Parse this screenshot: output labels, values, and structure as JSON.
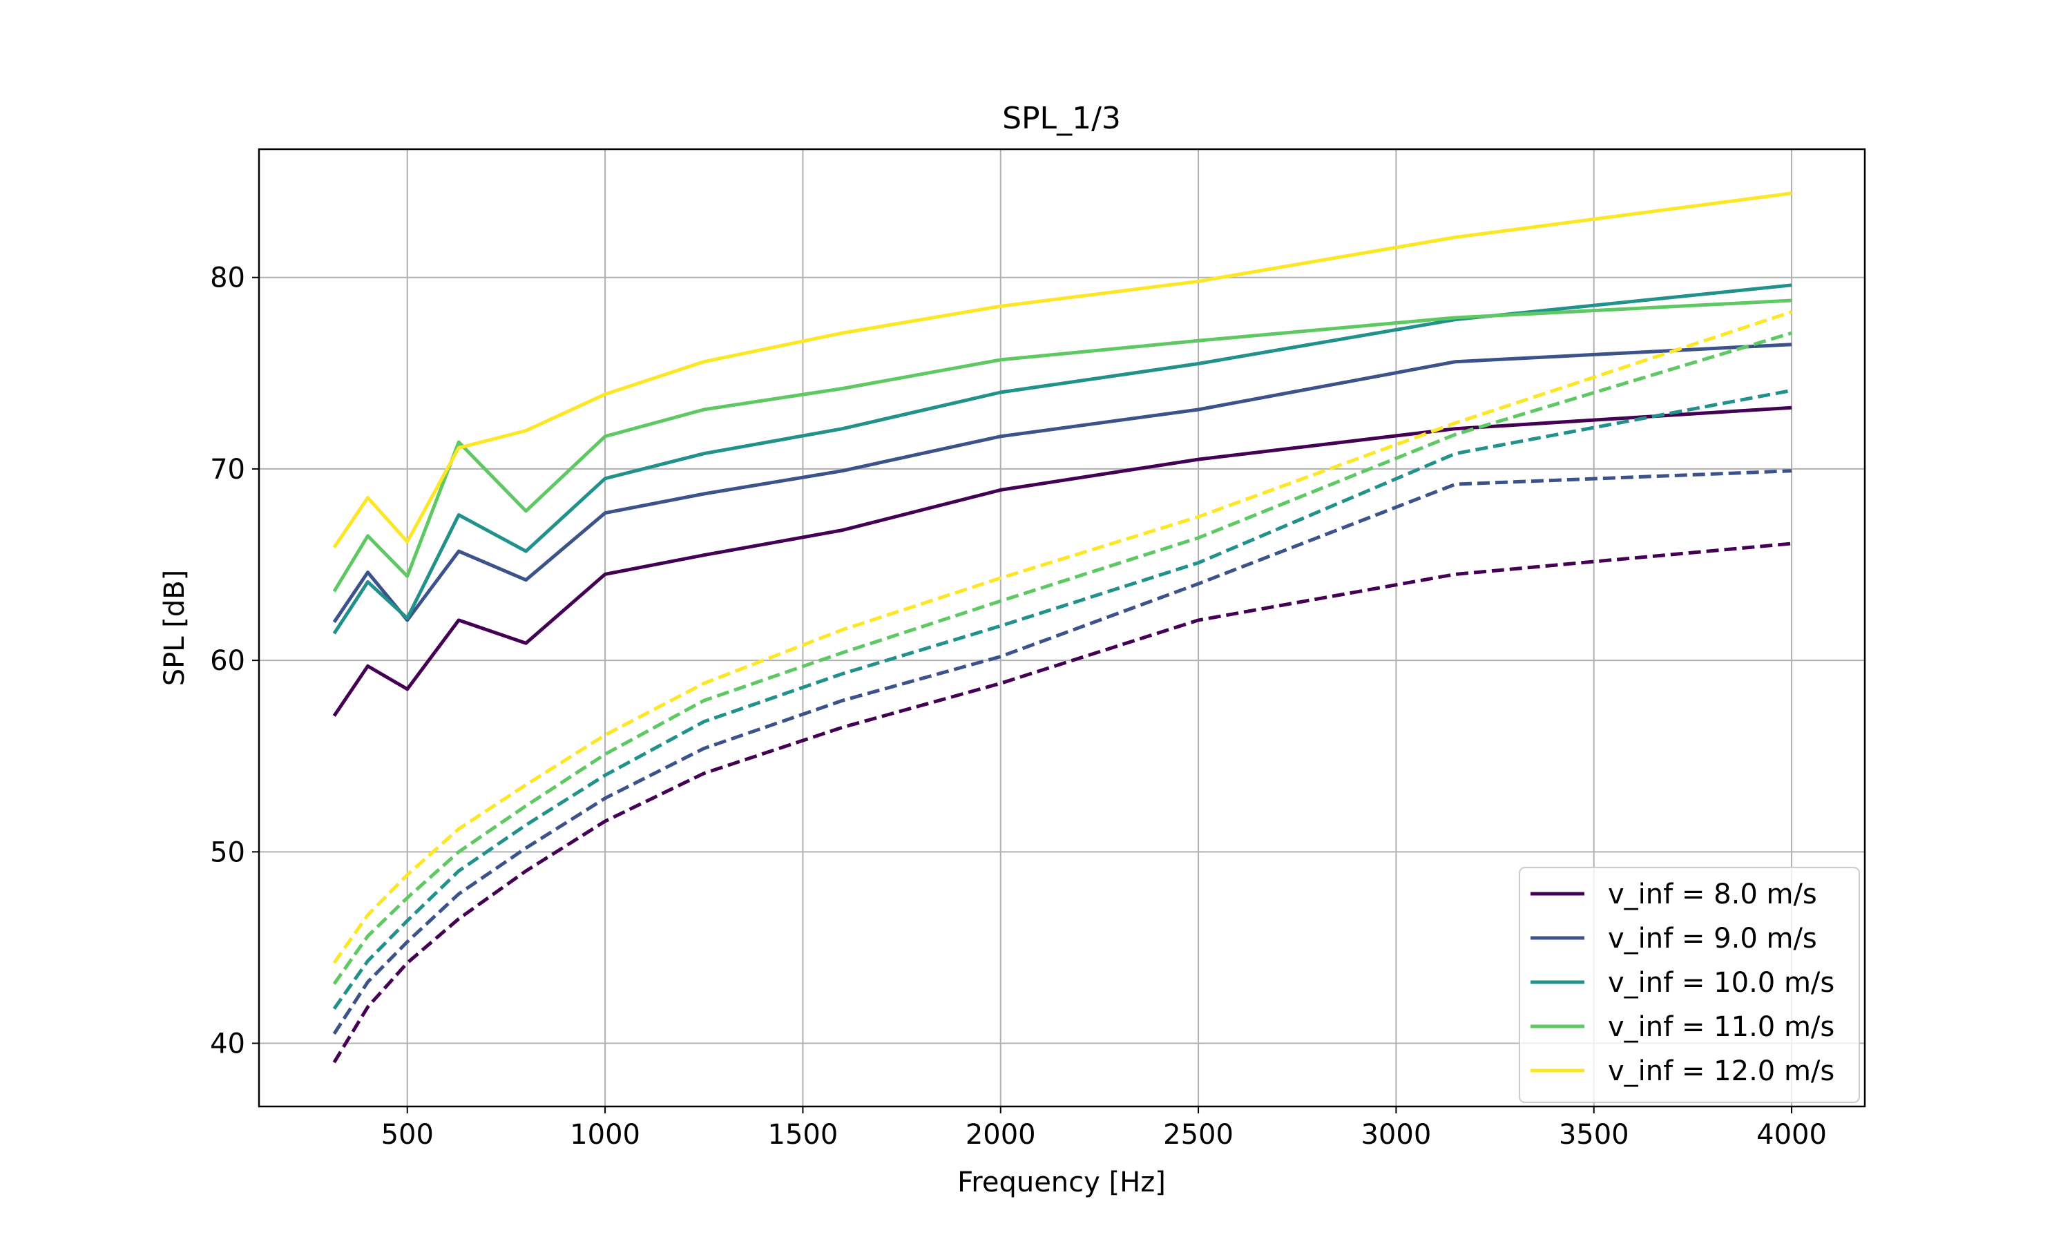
{
  "chart_data": {
    "type": "line",
    "title": "SPL_1/3",
    "xlabel": "Frequency [Hz]",
    "ylabel": "SPL [dB]",
    "xlim": [
      125,
      4185
    ],
    "ylim": [
      36.7,
      86.7
    ],
    "xticks": [
      500,
      1000,
      1500,
      2000,
      2500,
      3000,
      3500,
      4000
    ],
    "yticks": [
      40,
      50,
      60,
      70,
      80
    ],
    "grid": true,
    "legend_position": "lower-right",
    "x": [
      315,
      400,
      500,
      630,
      800,
      1000,
      1250,
      1600,
      2000,
      2500,
      3150,
      4000
    ],
    "series": [
      {
        "name": "v_inf = 8.0 m/s",
        "color": "#440154",
        "style": "solid",
        "in_legend": true,
        "values": [
          57.1,
          59.7,
          58.5,
          62.1,
          60.9,
          64.5,
          65.5,
          66.8,
          68.9,
          70.5,
          72.1,
          73.2
        ]
      },
      {
        "name": "v_inf = 9.0 m/s",
        "color": "#3b528b",
        "style": "solid",
        "in_legend": true,
        "values": [
          62.0,
          64.6,
          62.1,
          65.7,
          64.2,
          67.7,
          68.7,
          69.9,
          71.7,
          73.1,
          75.6,
          76.5
        ]
      },
      {
        "name": "v_inf = 10.0 m/s",
        "color": "#21918c",
        "style": "solid",
        "in_legend": true,
        "values": [
          61.4,
          64.1,
          62.2,
          67.6,
          65.7,
          69.5,
          70.8,
          72.1,
          74.0,
          75.5,
          77.8,
          79.6
        ]
      },
      {
        "name": "v_inf = 11.0 m/s",
        "color": "#5ec962",
        "style": "solid",
        "in_legend": true,
        "values": [
          63.6,
          66.5,
          64.4,
          71.4,
          67.8,
          71.7,
          73.1,
          74.2,
          75.7,
          76.7,
          77.9,
          78.8
        ]
      },
      {
        "name": "v_inf = 12.0 m/s",
        "color": "#fde725",
        "style": "solid",
        "in_legend": true,
        "values": [
          65.9,
          68.5,
          66.2,
          71.1,
          72.0,
          73.9,
          75.6,
          77.1,
          78.5,
          79.8,
          82.1,
          84.4
        ]
      },
      {
        "name": "",
        "color": "#440154",
        "style": "dashed",
        "in_legend": false,
        "values": [
          39.0,
          41.9,
          44.2,
          46.5,
          49.0,
          51.6,
          54.1,
          56.5,
          58.8,
          62.1,
          64.5,
          66.1
        ]
      },
      {
        "name": "",
        "color": "#3b528b",
        "style": "dashed",
        "in_legend": false,
        "values": [
          40.5,
          43.2,
          45.3,
          47.8,
          50.2,
          52.8,
          55.4,
          57.9,
          60.2,
          64.0,
          69.2,
          69.9
        ]
      },
      {
        "name": "",
        "color": "#21918c",
        "style": "dashed",
        "in_legend": false,
        "values": [
          41.8,
          44.3,
          46.4,
          49.0,
          51.4,
          54.0,
          56.8,
          59.3,
          61.8,
          65.1,
          70.8,
          74.1
        ]
      },
      {
        "name": "",
        "color": "#5ec962",
        "style": "dashed",
        "in_legend": false,
        "values": [
          43.1,
          45.6,
          47.6,
          50.0,
          52.4,
          55.1,
          57.9,
          60.4,
          63.1,
          66.4,
          71.8,
          77.1
        ]
      },
      {
        "name": "",
        "color": "#fde725",
        "style": "dashed",
        "in_legend": false,
        "values": [
          44.2,
          46.7,
          48.8,
          51.2,
          53.5,
          56.1,
          58.8,
          61.6,
          64.3,
          67.5,
          72.4,
          78.2
        ]
      }
    ]
  }
}
